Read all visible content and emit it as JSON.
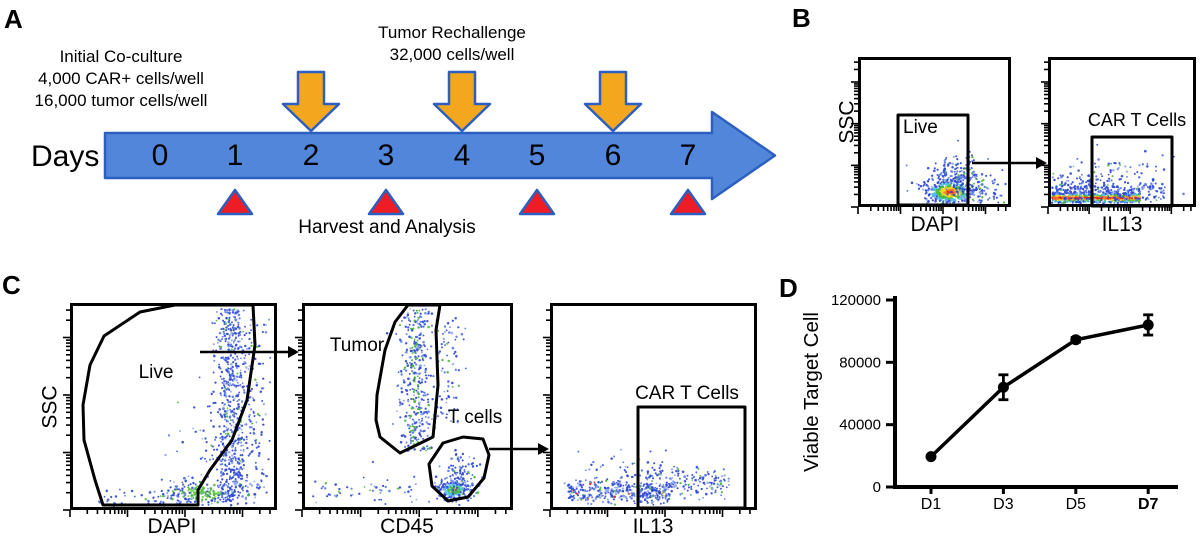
{
  "figure": {
    "panel_a": {
      "label": "A",
      "initial_conditions": [
        "Initial Co-culture",
        "4,000 CAR+ cells/well",
        "16,000 tumor cells/well"
      ],
      "rechallenge": [
        "Tumor Rechallenge",
        "32,000 cells/well"
      ],
      "timeline_label": "Days",
      "timeline_days": [
        "0",
        "1",
        "2",
        "3",
        "4",
        "5",
        "6",
        "7"
      ],
      "rechallenge_days": [
        "2",
        "4",
        "6"
      ],
      "harvest_days": [
        "1",
        "3",
        "5",
        "7"
      ],
      "harvest_label": "Harvest and Analysis"
    },
    "panel_b": {
      "label": "B",
      "plot1": {
        "ylabel": "SSC",
        "xlabel": "DAPI",
        "gate": "Live"
      },
      "plot2": {
        "xlabel": "IL13",
        "gate": "CAR T Cells"
      }
    },
    "panel_c": {
      "label": "C",
      "plot1": {
        "ylabel": "SSC",
        "xlabel": "DAPI",
        "gate": "Live"
      },
      "plot2": {
        "xlabel": "CD45",
        "gate1": "Tumor",
        "gate2": "T cells"
      },
      "plot3": {
        "xlabel": "IL13",
        "gate": "CAR T Cells"
      }
    },
    "panel_d": {
      "label": "D"
    }
  },
  "chart_data": {
    "type": "line",
    "categories": [
      "D1",
      "D3",
      "D5",
      "D7"
    ],
    "values": [
      19500,
      64000,
      94500,
      104000
    ],
    "errors": [
      0,
      8000,
      1500,
      6500
    ],
    "ylabel": "Viable Target Cell",
    "xlabel": "",
    "ylim": [
      0,
      120000
    ],
    "yticks": [
      0,
      40000,
      80000,
      120000
    ],
    "bold_category": "D7",
    "line_color": "#000000",
    "marker": "circle",
    "grid": "off",
    "legend": "none"
  },
  "colors": {
    "timeline_fill": "#5186db",
    "timeline_border": "#2d5fc0",
    "rechallenge_arrow_fill": "#f3a71e",
    "harvest_triangle_fill": "#ee1c24",
    "shape_border_blue": "#2d5fc0",
    "scatter_heat": [
      "#2e49d5",
      "#52c0e8",
      "#49bb3a",
      "#f2d41f",
      "#f57d1f",
      "#e01d1d"
    ]
  }
}
